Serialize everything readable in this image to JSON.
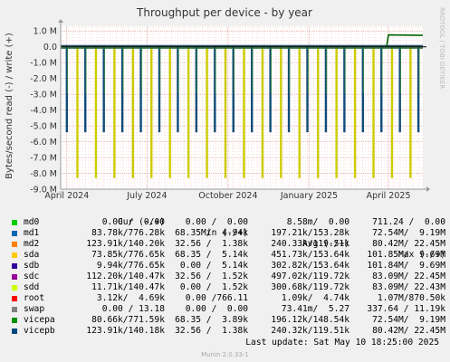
{
  "chart_data": {
    "type": "line",
    "title": "Throughput per device - by year",
    "ylabel": "Bytes/second read (-) / write (+)",
    "side_label": "RRDTOOL / TOBI OETIKER",
    "y_ticks": [
      "1.0 M",
      "0.0",
      "-1.0 M",
      "-2.0 M",
      "-3.0 M",
      "-4.0 M",
      "-5.0 M",
      "-6.0 M",
      "-7.0 M",
      "-8.0 M",
      "-9.0 M"
    ],
    "y_tick_values": [
      1,
      0,
      -1,
      -2,
      -3,
      -4,
      -5,
      -6,
      -7,
      -8,
      -9
    ],
    "ylim": [
      -9,
      1.3
    ],
    "x_ticks": [
      "April 2024",
      "July 2024",
      "October 2024",
      "January 2025",
      "April 2025"
    ],
    "x_tick_dates": [
      "2024-04-01",
      "2024-07-01",
      "2024-10-01",
      "2025-01-01",
      "2025-04-01"
    ],
    "xlim": [
      "2024-03-25",
      "2025-05-10"
    ],
    "grid": true,
    "series": [
      {
        "name": "sda",
        "color": "#CCCC00",
        "spike_dates": [
          "2024-04-13",
          "2024-05-04",
          "2024-05-25",
          "2024-06-15",
          "2024-07-06",
          "2024-07-27",
          "2024-08-17",
          "2024-09-07",
          "2024-09-28",
          "2024-10-19",
          "2024-11-09",
          "2024-11-30",
          "2024-12-21",
          "2025-01-11",
          "2025-02-01",
          "2025-02-22",
          "2025-03-15",
          "2025-04-05",
          "2025-04-26"
        ],
        "spike_depth": -8.3
      },
      {
        "name": "vicepb",
        "color": "#0F4B7A",
        "spike_dates": [
          "2024-04-01",
          "2024-04-22",
          "2024-05-13",
          "2024-06-03",
          "2024-06-24",
          "2024-07-15",
          "2024-08-05",
          "2024-08-26",
          "2024-09-16",
          "2024-10-07",
          "2024-10-28",
          "2024-11-18",
          "2024-12-09",
          "2024-12-30",
          "2025-01-20",
          "2025-02-10",
          "2025-03-03",
          "2025-03-24",
          "2025-04-14",
          "2025-05-05"
        ],
        "spike_depth": -5.4
      },
      {
        "name": "vicepa",
        "color": "#006600",
        "write_step_date": "2025-04-01",
        "write_step_value": 0.75
      }
    ]
  },
  "legend": {
    "headers": {
      "cur": "Cur (-/+)",
      "min": "Min (-/+)",
      "avg": "Avg (-/+)",
      "max": "Max (-/+)"
    },
    "rows": [
      {
        "name": "md0",
        "color": "#00CC00",
        "cur": "0.00 /  0.00",
        "min": "0.00 /  0.00",
        "avg": "8.58m/  0.00",
        "max": "711.24 /  0.00"
      },
      {
        "name": "md1",
        "color": "#0066B3",
        "cur": "83.78k/776.28k",
        "min": "68.35 /  4.94k",
        "avg": "197.21k/153.28k",
        "max": "72.54M/  9.19M"
      },
      {
        "name": "md2",
        "color": "#FF8000",
        "cur": "123.91k/140.20k",
        "min": "32.56 /  1.38k",
        "avg": "240.33k/119.51k",
        "max": "80.42M/ 22.45M"
      },
      {
        "name": "sda",
        "color": "#FFCC00",
        "cur": "73.85k/776.65k",
        "min": "68.35 /  5.14k",
        "avg": "451.73k/153.64k",
        "max": "101.85M/  9.69M"
      },
      {
        "name": "sdb",
        "color": "#330099",
        "cur": "9.94k/776.65k",
        "min": "0.00 /  5.14k",
        "avg": "302.82k/153.64k",
        "max": "101.84M/  9.69M"
      },
      {
        "name": "sdc",
        "color": "#990099",
        "cur": "112.20k/140.47k",
        "min": "32.56 /  1.52k",
        "avg": "497.02k/119.72k",
        "max": "83.09M/ 22.45M"
      },
      {
        "name": "sdd",
        "color": "#CCFF00",
        "cur": "11.71k/140.47k",
        "min": "0.00 /  1.52k",
        "avg": "300.68k/119.72k",
        "max": "83.09M/ 22.43M"
      },
      {
        "name": "root",
        "color": "#FF0000",
        "cur": "3.12k/  4.69k",
        "min": "0.00 /766.11",
        "avg": "1.09k/  4.74k",
        "max": "1.07M/870.50k"
      },
      {
        "name": "swap",
        "color": "#808080",
        "cur": "0.00 / 13.18",
        "min": "0.00 /  0.00",
        "avg": "73.41m/  5.27",
        "max": "337.64 / 11.19k"
      },
      {
        "name": "vicepa",
        "color": "#008F00",
        "cur": "80.66k/771.59k",
        "min": "68.35 /  3.89k",
        "avg": "196.12k/148.54k",
        "max": "72.54M/  9.19M"
      },
      {
        "name": "vicepb",
        "color": "#00487D",
        "cur": "123.91k/140.18k",
        "min": "32.56 /  1.38k",
        "avg": "240.32k/119.51k",
        "max": "80.42M/ 22.45M"
      }
    ]
  },
  "footer": {
    "last_update": "Last update:  Sat May 10 18:25:00 2025",
    "version": "Munin 2.0.33-1"
  }
}
